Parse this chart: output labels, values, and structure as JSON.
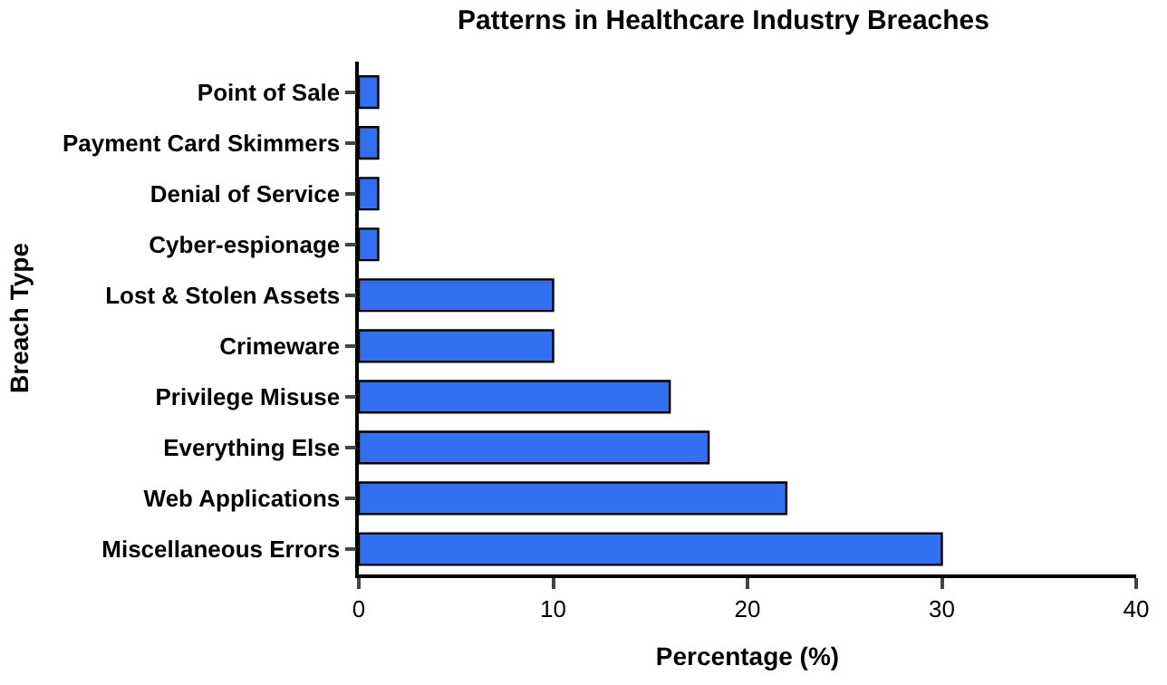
{
  "chart_data": {
    "type": "bar",
    "orientation": "horizontal",
    "title": "Patterns in Healthcare Industry Breaches",
    "xlabel": "Percentage (%)",
    "ylabel": "Breach Type",
    "categories": [
      "Point of Sale",
      "Payment Card Skimmers",
      "Denial of Service",
      "Cyber-espionage",
      "Lost & Stolen Assets",
      "Crimeware",
      "Privilege Misuse",
      "Everything Else",
      "Web Applications",
      "Miscellaneous Errors"
    ],
    "values": [
      1,
      1,
      1,
      1,
      10,
      10,
      16,
      18,
      22,
      30
    ],
    "color": "#2f6ff0",
    "xlim": [
      0,
      40
    ],
    "xticks": [
      0,
      10,
      20,
      30,
      40
    ],
    "legend": false
  }
}
